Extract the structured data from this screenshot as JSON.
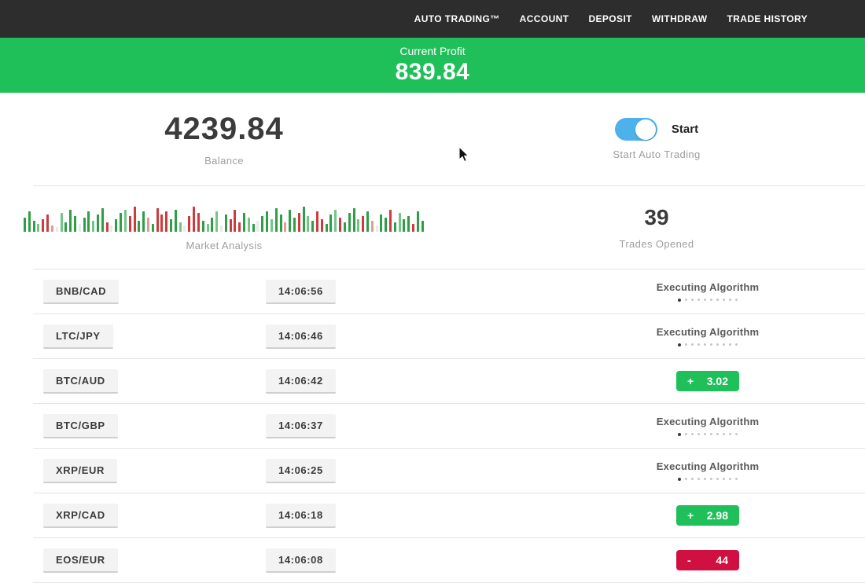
{
  "nav": {
    "items": [
      {
        "label": "AUTO TRADING™"
      },
      {
        "label": "ACCOUNT"
      },
      {
        "label": "DEPOSIT"
      },
      {
        "label": "WITHDRAW"
      },
      {
        "label": "TRADE HISTORY"
      }
    ]
  },
  "profit_banner": {
    "label": "Current Profit",
    "value": "839.84",
    "bg_color": "#1fc05a"
  },
  "stats": {
    "balance": {
      "value": "4239.84",
      "label": "Balance"
    },
    "auto_trading": {
      "toggle_state": "on",
      "toggle_color": "#4db1ec",
      "toggle_label": "Start",
      "label": "Start Auto Trading"
    },
    "trades_opened": {
      "value": "39",
      "label": "Trades Opened"
    },
    "market_analysis": {
      "label": "Market Analysis",
      "palette": {
        "g": "#2f9e45",
        "lg": "#74c687",
        "r": "#cf3b3b",
        "lr": "#e59a9a",
        "p": "#e9e9e9"
      },
      "bars": [
        [
          18,
          "g"
        ],
        [
          26,
          "g"
        ],
        [
          14,
          "g"
        ],
        [
          10,
          "lg"
        ],
        [
          16,
          "r"
        ],
        [
          22,
          "r"
        ],
        [
          8,
          "lr"
        ],
        [
          6,
          "p"
        ],
        [
          24,
          "lg"
        ],
        [
          12,
          "g"
        ],
        [
          28,
          "g"
        ],
        [
          20,
          "g"
        ],
        [
          10,
          "p"
        ],
        [
          18,
          "g"
        ],
        [
          26,
          "g"
        ],
        [
          14,
          "lg"
        ],
        [
          22,
          "g"
        ],
        [
          30,
          "g"
        ],
        [
          12,
          "r"
        ],
        [
          8,
          "p"
        ],
        [
          16,
          "g"
        ],
        [
          24,
          "g"
        ],
        [
          28,
          "lg"
        ],
        [
          20,
          "r"
        ],
        [
          32,
          "r"
        ],
        [
          14,
          "g"
        ],
        [
          26,
          "g"
        ],
        [
          18,
          "lr"
        ],
        [
          10,
          "g"
        ],
        [
          30,
          "r"
        ],
        [
          22,
          "r"
        ],
        [
          26,
          "r"
        ],
        [
          16,
          "g"
        ],
        [
          28,
          "g"
        ],
        [
          12,
          "lg"
        ],
        [
          8,
          "p"
        ],
        [
          20,
          "r"
        ],
        [
          32,
          "r"
        ],
        [
          24,
          "r"
        ],
        [
          14,
          "g"
        ],
        [
          10,
          "lg"
        ],
        [
          18,
          "g"
        ],
        [
          26,
          "lg"
        ],
        [
          8,
          "p"
        ],
        [
          22,
          "g"
        ],
        [
          16,
          "r"
        ],
        [
          28,
          "r"
        ],
        [
          12,
          "r"
        ],
        [
          24,
          "g"
        ],
        [
          18,
          "lg"
        ],
        [
          10,
          "g"
        ],
        [
          14,
          "p"
        ],
        [
          20,
          "g"
        ],
        [
          26,
          "g"
        ],
        [
          16,
          "lg"
        ],
        [
          30,
          "g"
        ],
        [
          22,
          "g"
        ],
        [
          12,
          "lr"
        ],
        [
          28,
          "g"
        ],
        [
          18,
          "g"
        ],
        [
          24,
          "r"
        ],
        [
          32,
          "g"
        ],
        [
          20,
          "lg"
        ],
        [
          14,
          "g"
        ],
        [
          26,
          "r"
        ],
        [
          16,
          "r"
        ],
        [
          10,
          "g"
        ],
        [
          22,
          "g"
        ],
        [
          28,
          "lg"
        ],
        [
          18,
          "r"
        ],
        [
          12,
          "g"
        ],
        [
          24,
          "g"
        ],
        [
          30,
          "g"
        ],
        [
          16,
          "lg"
        ],
        [
          20,
          "r"
        ],
        [
          26,
          "g"
        ],
        [
          14,
          "lr"
        ],
        [
          8,
          "p"
        ],
        [
          22,
          "g"
        ],
        [
          18,
          "g"
        ],
        [
          28,
          "r"
        ],
        [
          12,
          "g"
        ],
        [
          24,
          "lg"
        ],
        [
          16,
          "g"
        ],
        [
          20,
          "g"
        ],
        [
          10,
          "r"
        ],
        [
          26,
          "g"
        ],
        [
          14,
          "g"
        ]
      ]
    }
  },
  "trades": {
    "executing_dots_total": 10,
    "executing_dots_active_index": 0,
    "rows": [
      {
        "pair": "BNB/CAD",
        "time": "14:06:56",
        "status": {
          "type": "executing",
          "label": "Executing Algorithm"
        }
      },
      {
        "pair": "LTC/JPY",
        "time": "14:06:46",
        "status": {
          "type": "executing",
          "label": "Executing Algorithm"
        }
      },
      {
        "pair": "BTC/AUD",
        "time": "14:06:42",
        "status": {
          "type": "result",
          "sign": "+",
          "value": "3.02",
          "direction": "up"
        }
      },
      {
        "pair": "BTC/GBP",
        "time": "14:06:37",
        "status": {
          "type": "executing",
          "label": "Executing Algorithm"
        }
      },
      {
        "pair": "XRP/EUR",
        "time": "14:06:25",
        "status": {
          "type": "executing",
          "label": "Executing Algorithm"
        }
      },
      {
        "pair": "XRP/CAD",
        "time": "14:06:18",
        "status": {
          "type": "result",
          "sign": "+",
          "value": "2.98",
          "direction": "up"
        }
      },
      {
        "pair": "EOS/EUR",
        "time": "14:06:08",
        "status": {
          "type": "result",
          "sign": "-",
          "value": "44",
          "direction": "down"
        }
      }
    ]
  },
  "colors": {
    "positive": "#1fc05a",
    "negative": "#d11042",
    "nav_bg": "#2d2d2d"
  }
}
